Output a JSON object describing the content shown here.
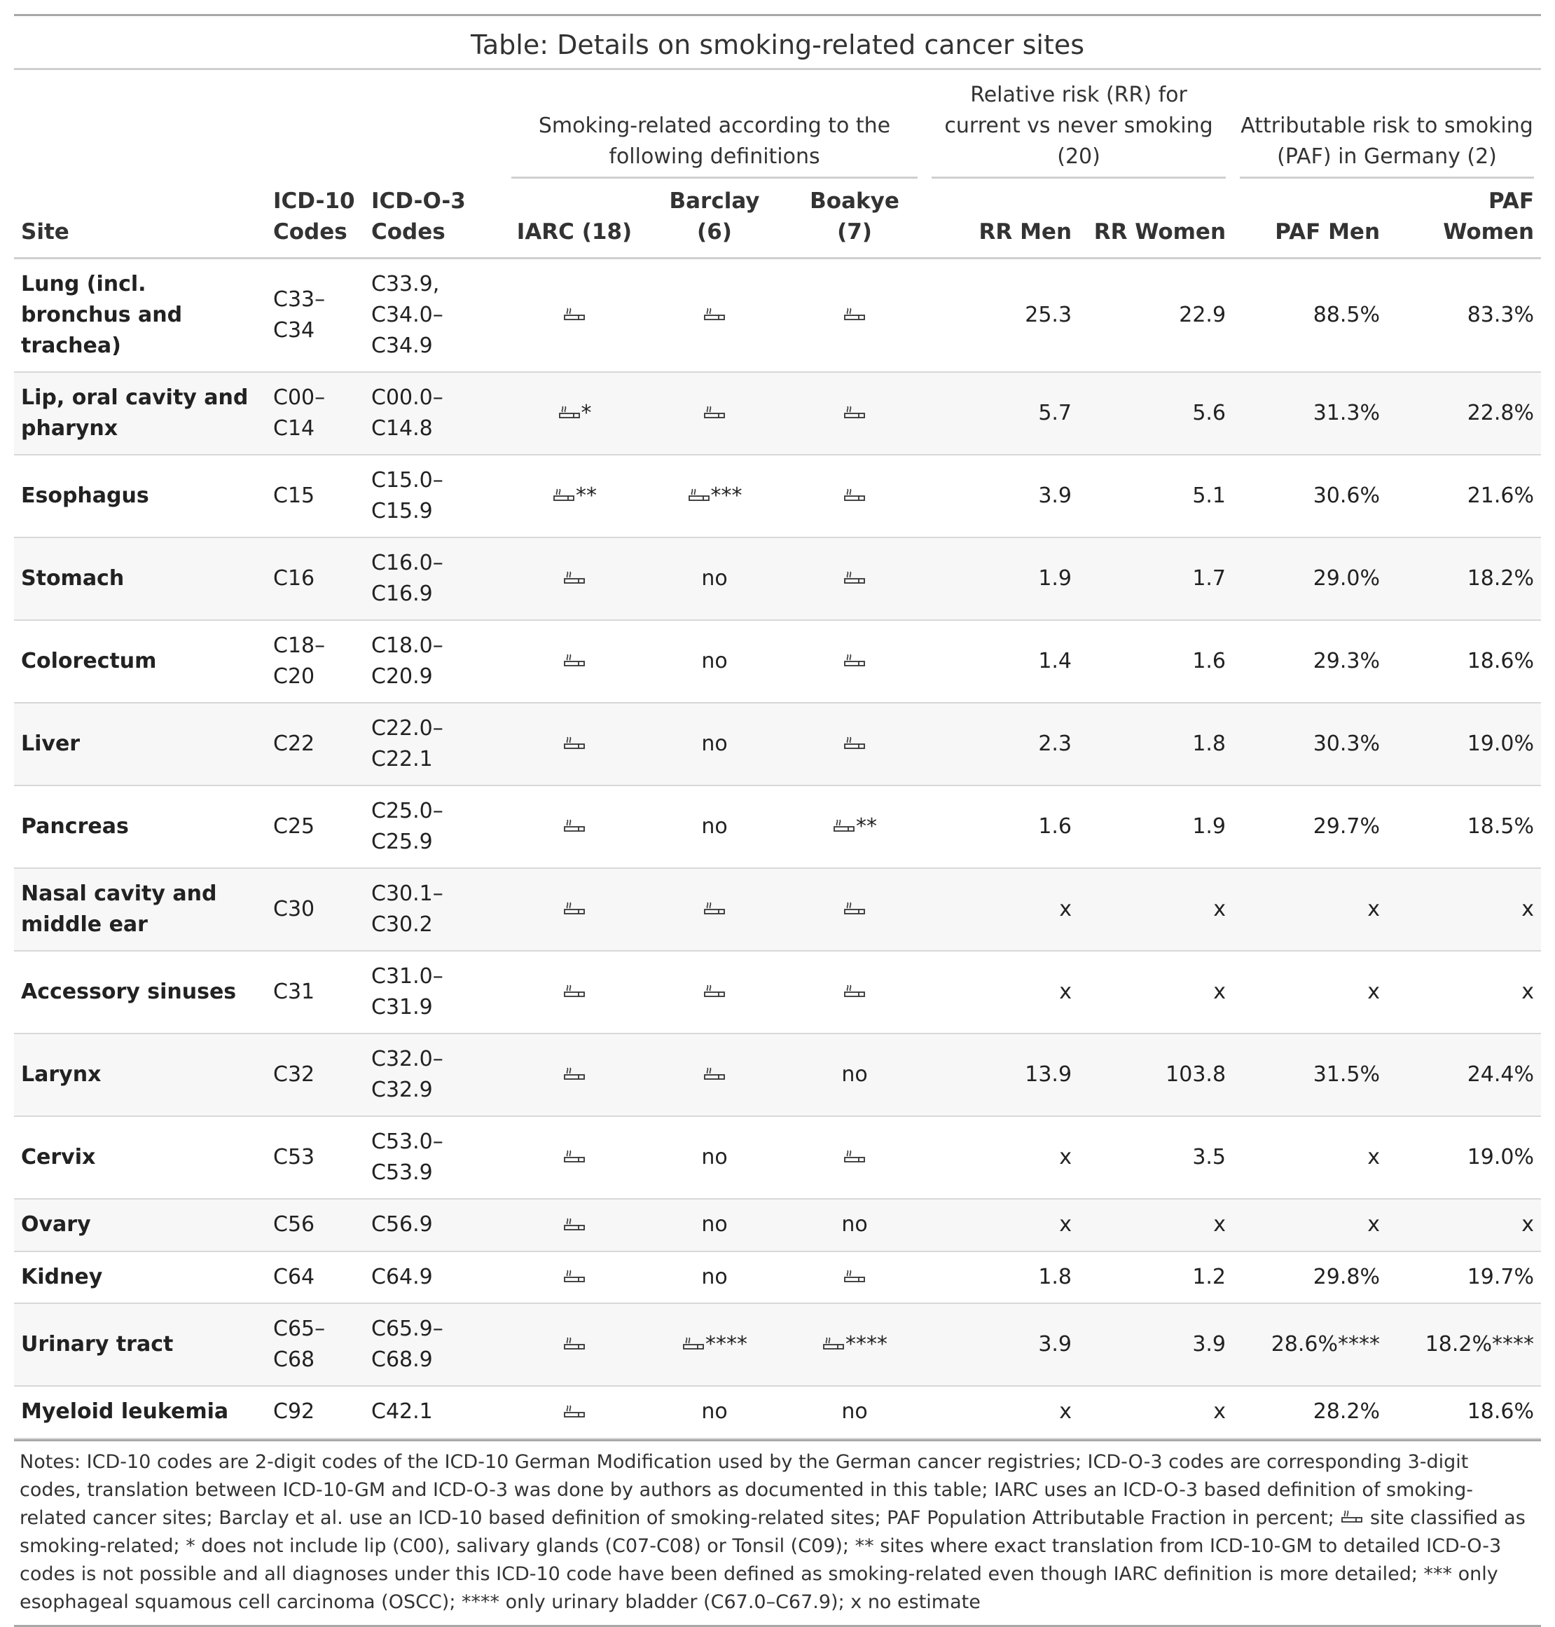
{
  "title": "Table: Details on smoking-related cancer sites",
  "spanners": {
    "definitions": "Smoking-related according to the following definitions",
    "rr": "Relative risk (RR) for current vs never smoking (20)",
    "paf": "Attributable risk to smoking (PAF) in Germany (2)"
  },
  "columns": {
    "site": "Site",
    "icd10": "ICD-10 Codes",
    "icdo3": "ICD-O-3 Codes",
    "iarc": "IARC (18)",
    "barclay": "Barclay (6)",
    "boakye": "Boakye (7)",
    "rr_men": "RR Men",
    "rr_women": "RR Women",
    "paf_men": "PAF Men",
    "paf_women": "PAF Women"
  },
  "smoking_icon": "cigarette-icon",
  "rows": [
    {
      "site": "Lung (incl. bronchus and trachea)",
      "icd10": "C33–C34",
      "icdo3": "C33.9, C34.0–C34.9",
      "iarc": {
        "icon": true,
        "mark": ""
      },
      "barclay": {
        "icon": true,
        "mark": ""
      },
      "boakye": {
        "icon": true,
        "mark": ""
      },
      "rr_men": "25.3",
      "rr_women": "22.9",
      "paf_men": "88.5%",
      "paf_women": "83.3%"
    },
    {
      "site": "Lip, oral cavity and pharynx",
      "icd10": "C00–C14",
      "icdo3": "C00.0–C14.8",
      "iarc": {
        "icon": true,
        "mark": "*"
      },
      "barclay": {
        "icon": true,
        "mark": ""
      },
      "boakye": {
        "icon": true,
        "mark": ""
      },
      "rr_men": "5.7",
      "rr_women": "5.6",
      "paf_men": "31.3%",
      "paf_women": "22.8%"
    },
    {
      "site": "Esophagus",
      "icd10": "C15",
      "icdo3": "C15.0–C15.9",
      "iarc": {
        "icon": true,
        "mark": "**"
      },
      "barclay": {
        "icon": true,
        "mark": "***"
      },
      "boakye": {
        "icon": true,
        "mark": ""
      },
      "rr_men": "3.9",
      "rr_women": "5.1",
      "paf_men": "30.6%",
      "paf_women": "21.6%"
    },
    {
      "site": "Stomach",
      "icd10": "C16",
      "icdo3": "C16.0–C16.9",
      "iarc": {
        "icon": true,
        "mark": ""
      },
      "barclay": {
        "icon": false,
        "text": "no"
      },
      "boakye": {
        "icon": true,
        "mark": ""
      },
      "rr_men": "1.9",
      "rr_women": "1.7",
      "paf_men": "29.0%",
      "paf_women": "18.2%"
    },
    {
      "site": "Colorectum",
      "icd10": "C18–C20",
      "icdo3": "C18.0–C20.9",
      "iarc": {
        "icon": true,
        "mark": ""
      },
      "barclay": {
        "icon": false,
        "text": "no"
      },
      "boakye": {
        "icon": true,
        "mark": ""
      },
      "rr_men": "1.4",
      "rr_women": "1.6",
      "paf_men": "29.3%",
      "paf_women": "18.6%"
    },
    {
      "site": "Liver",
      "icd10": "C22",
      "icdo3": "C22.0–C22.1",
      "iarc": {
        "icon": true,
        "mark": ""
      },
      "barclay": {
        "icon": false,
        "text": "no"
      },
      "boakye": {
        "icon": true,
        "mark": ""
      },
      "rr_men": "2.3",
      "rr_women": "1.8",
      "paf_men": "30.3%",
      "paf_women": "19.0%"
    },
    {
      "site": "Pancreas",
      "icd10": "C25",
      "icdo3": "C25.0–C25.9",
      "iarc": {
        "icon": true,
        "mark": ""
      },
      "barclay": {
        "icon": false,
        "text": "no"
      },
      "boakye": {
        "icon": true,
        "mark": "**"
      },
      "rr_men": "1.6",
      "rr_women": "1.9",
      "paf_men": "29.7%",
      "paf_women": "18.5%"
    },
    {
      "site": "Nasal cavity and middle ear",
      "icd10": "C30",
      "icdo3": "C30.1–C30.2",
      "iarc": {
        "icon": true,
        "mark": ""
      },
      "barclay": {
        "icon": true,
        "mark": ""
      },
      "boakye": {
        "icon": true,
        "mark": ""
      },
      "rr_men": "x",
      "rr_women": "x",
      "paf_men": "x",
      "paf_women": "x"
    },
    {
      "site": "Accessory sinuses",
      "icd10": "C31",
      "icdo3": "C31.0–C31.9",
      "iarc": {
        "icon": true,
        "mark": ""
      },
      "barclay": {
        "icon": true,
        "mark": ""
      },
      "boakye": {
        "icon": true,
        "mark": ""
      },
      "rr_men": "x",
      "rr_women": "x",
      "paf_men": "x",
      "paf_women": "x"
    },
    {
      "site": "Larynx",
      "icd10": "C32",
      "icdo3": "C32.0–C32.9",
      "iarc": {
        "icon": true,
        "mark": ""
      },
      "barclay": {
        "icon": true,
        "mark": ""
      },
      "boakye": {
        "icon": false,
        "text": "no"
      },
      "rr_men": "13.9",
      "rr_women": "103.8",
      "paf_men": "31.5%",
      "paf_women": "24.4%"
    },
    {
      "site": "Cervix",
      "icd10": "C53",
      "icdo3": "C53.0–C53.9",
      "iarc": {
        "icon": true,
        "mark": ""
      },
      "barclay": {
        "icon": false,
        "text": "no"
      },
      "boakye": {
        "icon": true,
        "mark": ""
      },
      "rr_men": "x",
      "rr_women": "3.5",
      "paf_men": "x",
      "paf_women": "19.0%"
    },
    {
      "site": "Ovary",
      "icd10": "C56",
      "icdo3": "C56.9",
      "iarc": {
        "icon": true,
        "mark": ""
      },
      "barclay": {
        "icon": false,
        "text": "no"
      },
      "boakye": {
        "icon": false,
        "text": "no"
      },
      "rr_men": "x",
      "rr_women": "x",
      "paf_men": "x",
      "paf_women": "x"
    },
    {
      "site": "Kidney",
      "icd10": "C64",
      "icdo3": "C64.9",
      "iarc": {
        "icon": true,
        "mark": ""
      },
      "barclay": {
        "icon": false,
        "text": "no"
      },
      "boakye": {
        "icon": true,
        "mark": ""
      },
      "rr_men": "1.8",
      "rr_women": "1.2",
      "paf_men": "29.8%",
      "paf_women": "19.7%"
    },
    {
      "site": "Urinary tract",
      "icd10": "C65–C68",
      "icdo3": "C65.9–C68.9",
      "iarc": {
        "icon": true,
        "mark": ""
      },
      "barclay": {
        "icon": true,
        "mark": "****"
      },
      "boakye": {
        "icon": true,
        "mark": "****"
      },
      "rr_men": "3.9",
      "rr_women": "3.9",
      "paf_men": "28.6%****",
      "paf_women": "18.2%****"
    },
    {
      "site": "Myeloid leukemia",
      "icd10": "C92",
      "icdo3": "C42.1",
      "iarc": {
        "icon": true,
        "mark": ""
      },
      "barclay": {
        "icon": false,
        "text": "no"
      },
      "boakye": {
        "icon": false,
        "text": "no"
      },
      "rr_men": "x",
      "rr_women": "x",
      "paf_men": "28.2%",
      "paf_women": "18.6%"
    }
  ],
  "notes": {
    "part1": "Notes: ICD-10 codes are 2-digit codes of the ICD-10 German Modification used by the German cancer registries; ICD-O-3 codes are corresponding 3-digit codes, translation between ICD-10-GM and ICD-O-3 was done by authors as documented in this table; IARC uses an ICD-O-3 based definition of smoking-related cancer sites; Barclay et al. use an ICD-10 based definition of smoking-related sites; PAF Population Attributable Fraction in percent;",
    "part2": "site classified as smoking-related; * does not include lip (C00), salivary glands (C07-C08) or Tonsil (C09); ** sites where exact translation from ICD-10-GM to detailed ICD-O-3 codes is not possible and all diagnoses under this ICD-10 code have been defined as smoking-related even though IARC definition is more detailed; *** only esophageal squamous cell carcinoma (OSCC); **** only urinary bladder (C67.0–C67.9); x no estimate"
  }
}
